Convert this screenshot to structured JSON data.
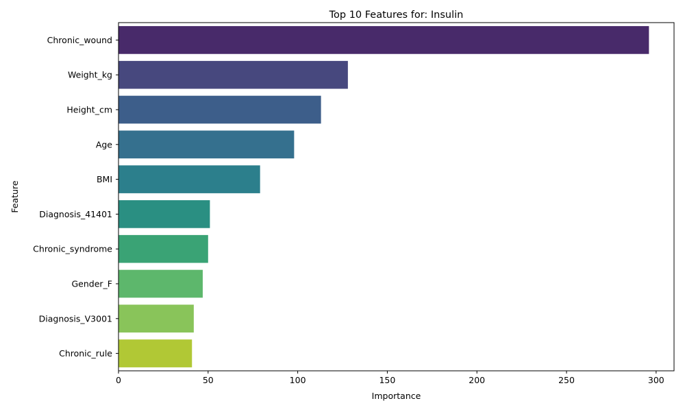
{
  "chart_data": {
    "type": "bar",
    "orientation": "horizontal",
    "title": "Top 10 Features for: Insulin",
    "xlabel": "Importance",
    "ylabel": "Feature",
    "xlim": [
      0,
      310
    ],
    "xticks": [
      0,
      50,
      100,
      150,
      200,
      250,
      300
    ],
    "grid": false,
    "categories": [
      "Chronic_wound",
      "Weight_kg",
      "Height_cm",
      "Age",
      "BMI",
      "Diagnosis_41401",
      "Chronic_syndrome",
      "Gender_F",
      "Diagnosis_V3001",
      "Chronic_rule"
    ],
    "values": [
      296,
      128,
      113,
      98,
      79,
      51,
      50,
      47,
      42,
      41
    ],
    "colors": [
      "#482a6a",
      "#47487e",
      "#3d5e8a",
      "#35708e",
      "#2c7f8c",
      "#2a8f82",
      "#3aa375",
      "#5db76c",
      "#89c45a",
      "#b1c835"
    ]
  }
}
